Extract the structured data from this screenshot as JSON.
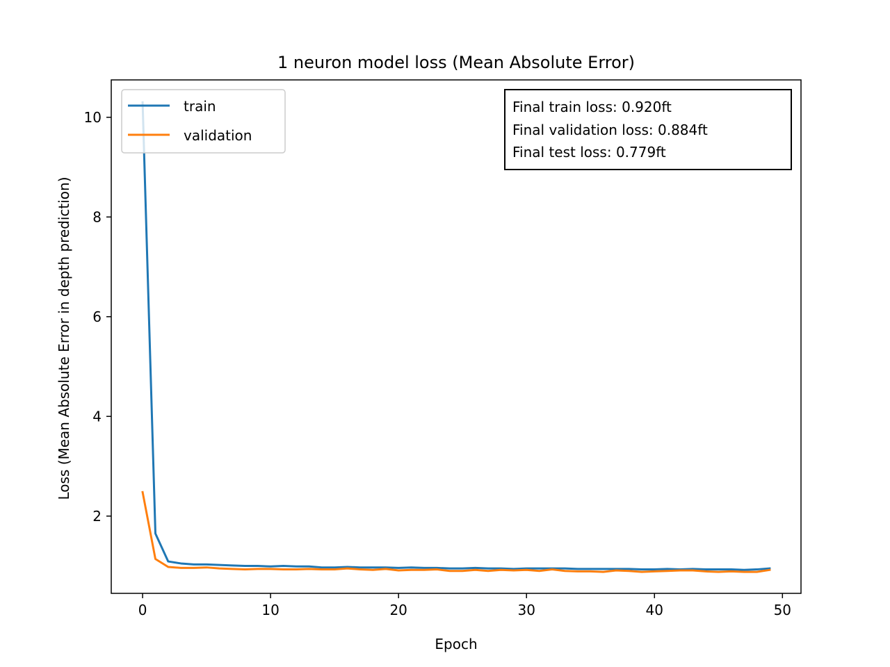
{
  "chart_data": {
    "type": "line",
    "title": "1 neuron model loss (Mean Absolute Error)",
    "xlabel": "Epoch",
    "ylabel": "Loss (Mean Absolute Error in depth prediction)",
    "xlim": [
      -2.45,
      51.45
    ],
    "ylim": [
      0.45,
      10.75
    ],
    "xticks": [
      0,
      10,
      20,
      30,
      40,
      50
    ],
    "yticks": [
      2,
      4,
      6,
      8,
      10
    ],
    "grid": false,
    "legend_position": "upper left",
    "series": [
      {
        "name": "train",
        "color": "#1f77b4",
        "x": [
          0,
          1,
          2,
          3,
          4,
          5,
          6,
          7,
          8,
          9,
          10,
          11,
          12,
          13,
          14,
          15,
          16,
          17,
          18,
          19,
          20,
          21,
          22,
          23,
          24,
          25,
          26,
          27,
          28,
          29,
          30,
          31,
          32,
          33,
          34,
          35,
          36,
          37,
          38,
          39,
          40,
          41,
          42,
          43,
          44,
          45,
          46,
          47,
          48,
          49
        ],
        "y": [
          10.3,
          1.65,
          1.09,
          1.05,
          1.03,
          1.03,
          1.02,
          1.01,
          1.0,
          1.0,
          0.99,
          1.0,
          0.99,
          0.99,
          0.97,
          0.97,
          0.98,
          0.97,
          0.97,
          0.97,
          0.96,
          0.97,
          0.96,
          0.96,
          0.95,
          0.95,
          0.96,
          0.95,
          0.95,
          0.94,
          0.95,
          0.95,
          0.95,
          0.95,
          0.94,
          0.94,
          0.94,
          0.94,
          0.94,
          0.93,
          0.93,
          0.94,
          0.93,
          0.94,
          0.93,
          0.93,
          0.93,
          0.92,
          0.93,
          0.95
        ]
      },
      {
        "name": "validation",
        "color": "#ff7f0e",
        "x": [
          0,
          1,
          2,
          3,
          4,
          5,
          6,
          7,
          8,
          9,
          10,
          11,
          12,
          13,
          14,
          15,
          16,
          17,
          18,
          19,
          20,
          21,
          22,
          23,
          24,
          25,
          26,
          27,
          28,
          29,
          30,
          31,
          32,
          33,
          34,
          35,
          36,
          37,
          38,
          39,
          40,
          41,
          42,
          43,
          44,
          45,
          46,
          47,
          48,
          49
        ],
        "y": [
          2.48,
          1.14,
          0.98,
          0.96,
          0.96,
          0.97,
          0.95,
          0.94,
          0.93,
          0.94,
          0.94,
          0.93,
          0.93,
          0.94,
          0.93,
          0.93,
          0.95,
          0.93,
          0.92,
          0.94,
          0.91,
          0.92,
          0.92,
          0.93,
          0.9,
          0.9,
          0.92,
          0.9,
          0.92,
          0.91,
          0.92,
          0.9,
          0.93,
          0.9,
          0.89,
          0.89,
          0.88,
          0.91,
          0.9,
          0.88,
          0.89,
          0.9,
          0.91,
          0.91,
          0.89,
          0.88,
          0.89,
          0.88,
          0.88,
          0.92
        ]
      }
    ],
    "annotation": {
      "lines": [
        "Final train loss: 0.920ft",
        "Final validation loss: 0.884ft",
        "Final test loss: 0.779ft"
      ],
      "position": "top-right"
    }
  }
}
